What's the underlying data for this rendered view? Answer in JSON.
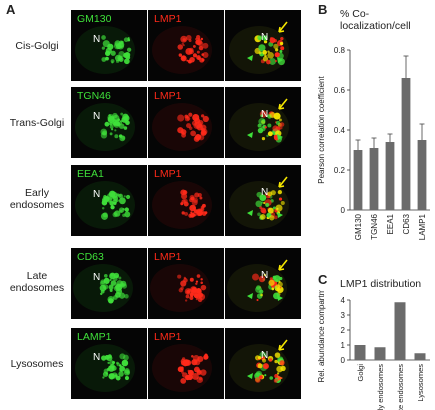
{
  "panel_labels": {
    "a": "A",
    "b": "B",
    "c": "C"
  },
  "rows": [
    {
      "label": "Cis-Golgi",
      "marker": "GM130",
      "lmp": "LMP1",
      "n": "N"
    },
    {
      "label": "Trans-Golgi",
      "marker": "TGN46",
      "lmp": "LMP1",
      "n": "N"
    },
    {
      "label": "Early endosomes",
      "marker": "EEA1",
      "lmp": "LMP1",
      "n": "N"
    },
    {
      "label": "Late endosomes",
      "marker": "CD63",
      "lmp": "LMP1",
      "n": "N"
    },
    {
      "label": "Lysosomes",
      "marker": "LAMP1",
      "lmp": "LMP1",
      "n": "N"
    }
  ],
  "colors": {
    "green": "#3fe03a",
    "red": "#ff2a1a",
    "yellow": "#f5e600",
    "bar": "#6b6b6b"
  },
  "chart_data": [
    {
      "type": "bar",
      "title": "% Co-localization/cell",
      "ylabel": "Pearson correlation coefficient",
      "categories": [
        "GM130",
        "TGN46",
        "EEA1",
        "CD63",
        "LAMP1"
      ],
      "values": [
        0.3,
        0.31,
        0.34,
        0.66,
        0.35
      ],
      "errors": [
        0.05,
        0.05,
        0.04,
        0.11,
        0.08
      ],
      "ylim": [
        0,
        0.8
      ],
      "yticks": [
        "0",
        "0.2",
        "0.4",
        "0.6",
        "0.8"
      ]
    },
    {
      "type": "bar",
      "title": "LMP1 distribution",
      "ylabel": "Rel. abundance compartment",
      "categories": [
        "Golgi",
        "Early endosomes",
        "Late endosomes",
        "Lysosomes"
      ],
      "values": [
        1.0,
        0.85,
        3.85,
        0.45
      ],
      "ylim": [
        0,
        4
      ],
      "yticks": [
        "0",
        "1",
        "2",
        "3",
        "4"
      ]
    }
  ]
}
